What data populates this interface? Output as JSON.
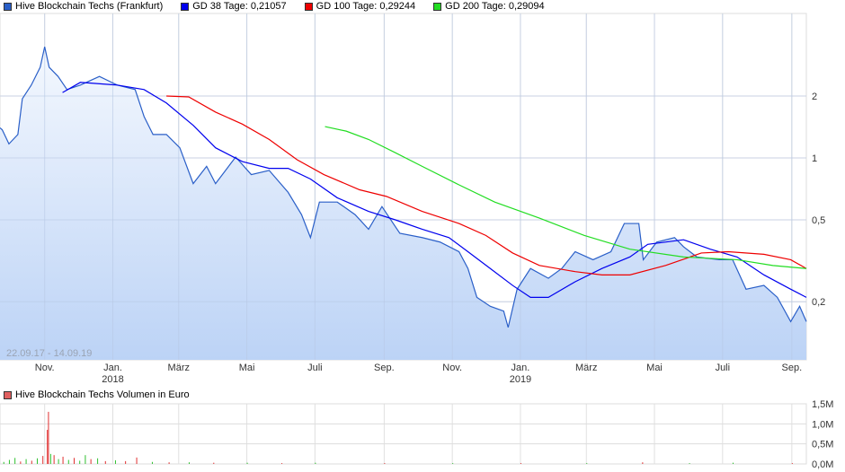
{
  "chart_data": [
    {
      "type": "line",
      "title": "",
      "legend_placement": "top-left",
      "y_scale": "log",
      "ylim": [
        0.13,
        4.2
      ],
      "xlim": [
        "2017-09-22",
        "2019-09-14"
      ],
      "grid": true,
      "date_range_label": "22.09.17 - 14.09.19",
      "y_ticks": [
        {
          "value": 2,
          "label": "2"
        },
        {
          "value": 1,
          "label": "1"
        },
        {
          "value": 0.5,
          "label": "0,5"
        },
        {
          "value": 0.2,
          "label": "0,2"
        }
      ],
      "x_ticks": [
        {
          "date": "2017-11-01",
          "label": "Nov.",
          "year": ""
        },
        {
          "date": "2018-01-01",
          "label": "Jan.",
          "year": "2018"
        },
        {
          "date": "2018-03-01",
          "label": "März",
          "year": ""
        },
        {
          "date": "2018-05-01",
          "label": "Mai",
          "year": ""
        },
        {
          "date": "2018-07-01",
          "label": "Juli",
          "year": ""
        },
        {
          "date": "2018-09-01",
          "label": "Sep.",
          "year": ""
        },
        {
          "date": "2018-11-01",
          "label": "Nov.",
          "year": ""
        },
        {
          "date": "2019-01-01",
          "label": "Jan.",
          "year": "2019"
        },
        {
          "date": "2019-03-01",
          "label": "März",
          "year": ""
        },
        {
          "date": "2019-05-01",
          "label": "Mai",
          "year": ""
        },
        {
          "date": "2019-07-01",
          "label": "Juli",
          "year": ""
        },
        {
          "date": "2019-09-01",
          "label": "Sep.",
          "year": ""
        }
      ],
      "series": [
        {
          "name": "Hive Blockchain Techs (Frankfurt)",
          "color": "#2a5fc8",
          "legend_label": "Hive Blockchain Techs (Frankfurt)",
          "fill": true,
          "points": [
            [
              "2017-09-22",
              1.4
            ],
            [
              "2017-09-24",
              1.37
            ],
            [
              "2017-09-30",
              1.17
            ],
            [
              "2017-10-08",
              1.3
            ],
            [
              "2017-10-12",
              1.94
            ],
            [
              "2017-10-20",
              2.26
            ],
            [
              "2017-10-28",
              2.76
            ],
            [
              "2017-11-01",
              3.47
            ],
            [
              "2017-11-05",
              2.76
            ],
            [
              "2017-11-13",
              2.49
            ],
            [
              "2017-11-21",
              2.15
            ],
            [
              "2017-12-03",
              2.26
            ],
            [
              "2017-12-20",
              2.49
            ],
            [
              "2018-01-05",
              2.26
            ],
            [
              "2018-01-21",
              2.15
            ],
            [
              "2018-01-29",
              1.59
            ],
            [
              "2018-02-06",
              1.3
            ],
            [
              "2018-02-18",
              1.3
            ],
            [
              "2018-03-02",
              1.12
            ],
            [
              "2018-03-14",
              0.75
            ],
            [
              "2018-03-26",
              0.91
            ],
            [
              "2018-04-03",
              0.75
            ],
            [
              "2018-04-21",
              1.01
            ],
            [
              "2018-05-05",
              0.83
            ],
            [
              "2018-05-21",
              0.87
            ],
            [
              "2018-06-07",
              0.68
            ],
            [
              "2018-06-19",
              0.53
            ],
            [
              "2018-06-27",
              0.41
            ],
            [
              "2018-07-05",
              0.61
            ],
            [
              "2018-07-21",
              0.61
            ],
            [
              "2018-08-06",
              0.53
            ],
            [
              "2018-08-18",
              0.45
            ],
            [
              "2018-08-30",
              0.58
            ],
            [
              "2018-09-15",
              0.43
            ],
            [
              "2018-10-05",
              0.41
            ],
            [
              "2018-10-21",
              0.39
            ],
            [
              "2018-11-07",
              0.35
            ],
            [
              "2018-11-15",
              0.29
            ],
            [
              "2018-11-23",
              0.21
            ],
            [
              "2018-12-05",
              0.19
            ],
            [
              "2018-12-17",
              0.18
            ],
            [
              "2018-12-21",
              0.15
            ],
            [
              "2018-12-29",
              0.23
            ],
            [
              "2019-01-10",
              0.29
            ],
            [
              "2019-01-26",
              0.26
            ],
            [
              "2019-02-07",
              0.29
            ],
            [
              "2019-02-19",
              0.35
            ],
            [
              "2019-03-07",
              0.32
            ],
            [
              "2019-03-23",
              0.35
            ],
            [
              "2019-04-04",
              0.48
            ],
            [
              "2019-04-17",
              0.48
            ],
            [
              "2019-04-21",
              0.32
            ],
            [
              "2019-05-03",
              0.39
            ],
            [
              "2019-05-19",
              0.41
            ],
            [
              "2019-05-27",
              0.37
            ],
            [
              "2019-06-08",
              0.33
            ],
            [
              "2019-06-28",
              0.32
            ],
            [
              "2019-07-10",
              0.32
            ],
            [
              "2019-07-22",
              0.23
            ],
            [
              "2019-08-07",
              0.24
            ],
            [
              "2019-08-19",
              0.21
            ],
            [
              "2019-08-31",
              0.16
            ],
            [
              "2019-09-08",
              0.19
            ],
            [
              "2019-09-14",
              0.16
            ]
          ]
        },
        {
          "name": "GD 38 Tage",
          "color": "#0000ee",
          "legend_label": "GD 38 Tage: 0,21057",
          "points": [
            [
              "2017-11-17",
              2.08
            ],
            [
              "2017-12-03",
              2.33
            ],
            [
              "2018-01-05",
              2.26
            ],
            [
              "2018-01-29",
              2.15
            ],
            [
              "2018-02-18",
              1.85
            ],
            [
              "2018-03-14",
              1.44
            ],
            [
              "2018-04-03",
              1.12
            ],
            [
              "2018-04-27",
              0.96
            ],
            [
              "2018-05-21",
              0.89
            ],
            [
              "2018-06-07",
              0.89
            ],
            [
              "2018-06-27",
              0.79
            ],
            [
              "2018-07-21",
              0.64
            ],
            [
              "2018-08-18",
              0.55
            ],
            [
              "2018-09-11",
              0.5
            ],
            [
              "2018-10-05",
              0.45
            ],
            [
              "2018-10-29",
              0.41
            ],
            [
              "2018-11-15",
              0.35
            ],
            [
              "2018-12-05",
              0.29
            ],
            [
              "2018-12-25",
              0.24
            ],
            [
              "2019-01-10",
              0.21
            ],
            [
              "2019-01-26",
              0.21
            ],
            [
              "2019-02-19",
              0.25
            ],
            [
              "2019-03-15",
              0.29
            ],
            [
              "2019-04-09",
              0.33
            ],
            [
              "2019-04-25",
              0.38
            ],
            [
              "2019-05-27",
              0.4
            ],
            [
              "2019-06-20",
              0.36
            ],
            [
              "2019-07-14",
              0.33
            ],
            [
              "2019-08-07",
              0.27
            ],
            [
              "2019-08-31",
              0.23
            ],
            [
              "2019-09-14",
              0.21
            ]
          ]
        },
        {
          "name": "GD 100 Tage",
          "color": "#ee0000",
          "legend_label": "GD 100 Tage: 0,29244",
          "points": [
            [
              "2018-02-18",
              2.0
            ],
            [
              "2018-03-10",
              1.98
            ],
            [
              "2018-04-03",
              1.67
            ],
            [
              "2018-04-27",
              1.46
            ],
            [
              "2018-05-21",
              1.23
            ],
            [
              "2018-06-15",
              0.98
            ],
            [
              "2018-07-09",
              0.83
            ],
            [
              "2018-08-10",
              0.7
            ],
            [
              "2018-09-03",
              0.65
            ],
            [
              "2018-10-05",
              0.55
            ],
            [
              "2018-11-07",
              0.48
            ],
            [
              "2018-12-01",
              0.42
            ],
            [
              "2018-12-25",
              0.345
            ],
            [
              "2019-01-18",
              0.3
            ],
            [
              "2019-02-19",
              0.28
            ],
            [
              "2019-03-15",
              0.27
            ],
            [
              "2019-04-09",
              0.27
            ],
            [
              "2019-05-11",
              0.3
            ],
            [
              "2019-06-12",
              0.345
            ],
            [
              "2019-07-06",
              0.35
            ],
            [
              "2019-08-07",
              0.34
            ],
            [
              "2019-08-31",
              0.32
            ],
            [
              "2019-09-14",
              0.29
            ]
          ]
        },
        {
          "name": "GD 200 Tage",
          "color": "#22dd22",
          "legend_label": "GD 200 Tage: 0,29094",
          "points": [
            [
              "2018-07-10",
              1.42
            ],
            [
              "2018-07-29",
              1.35
            ],
            [
              "2018-08-18",
              1.23
            ],
            [
              "2018-09-11",
              1.06
            ],
            [
              "2018-10-05",
              0.91
            ],
            [
              "2018-11-07",
              0.74
            ],
            [
              "2018-12-09",
              0.61
            ],
            [
              "2019-01-18",
              0.51
            ],
            [
              "2019-02-27",
              0.42
            ],
            [
              "2019-04-09",
              0.36
            ],
            [
              "2019-05-27",
              0.33
            ],
            [
              "2019-07-14",
              0.32
            ],
            [
              "2019-08-15",
              0.3
            ],
            [
              "2019-09-14",
              0.29
            ]
          ]
        }
      ]
    },
    {
      "type": "bar",
      "title": "Hive Blockchain Techs Volumen in Euro",
      "legend_color": "#e06060",
      "ylim": [
        0,
        1.5
      ],
      "y_unit": "M",
      "y_ticks": [
        {
          "value": 1.5,
          "label": "1,5M"
        },
        {
          "value": 1.0,
          "label": "1,0M"
        },
        {
          "value": 0.5,
          "label": "0,5M"
        },
        {
          "value": 0,
          "label": "0,0M"
        }
      ],
      "bars": [
        [
          "2017-09-25",
          0.05,
          "g"
        ],
        [
          "2017-09-30",
          0.1,
          "g"
        ],
        [
          "2017-10-05",
          0.15,
          "g"
        ],
        [
          "2017-10-10",
          0.06,
          "r"
        ],
        [
          "2017-10-15",
          0.12,
          "g"
        ],
        [
          "2017-10-20",
          0.08,
          "r"
        ],
        [
          "2017-10-25",
          0.14,
          "g"
        ],
        [
          "2017-10-30",
          0.2,
          "r"
        ],
        [
          "2017-11-03",
          0.85,
          "r"
        ],
        [
          "2017-11-04",
          1.3,
          "r"
        ],
        [
          "2017-11-06",
          0.25,
          "g"
        ],
        [
          "2017-11-09",
          0.22,
          "r"
        ],
        [
          "2017-11-13",
          0.12,
          "g"
        ],
        [
          "2017-11-17",
          0.18,
          "r"
        ],
        [
          "2017-11-22",
          0.1,
          "g"
        ],
        [
          "2017-11-27",
          0.15,
          "r"
        ],
        [
          "2017-12-02",
          0.08,
          "g"
        ],
        [
          "2017-12-07",
          0.22,
          "g"
        ],
        [
          "2017-12-12",
          0.12,
          "r"
        ],
        [
          "2017-12-18",
          0.14,
          "g"
        ],
        [
          "2017-12-25",
          0.07,
          "r"
        ],
        [
          "2018-01-03",
          0.09,
          "g"
        ],
        [
          "2018-01-12",
          0.07,
          "r"
        ],
        [
          "2018-01-22",
          0.16,
          "r"
        ],
        [
          "2018-02-05",
          0.05,
          "g"
        ],
        [
          "2018-02-20",
          0.04,
          "r"
        ],
        [
          "2018-03-10",
          0.04,
          "g"
        ],
        [
          "2018-04-01",
          0.03,
          "r"
        ],
        [
          "2018-05-01",
          0.03,
          "g"
        ],
        [
          "2018-06-01",
          0.02,
          "r"
        ],
        [
          "2018-07-01",
          0.03,
          "g"
        ],
        [
          "2018-09-01",
          0.02,
          "r"
        ],
        [
          "2018-11-01",
          0.02,
          "g"
        ],
        [
          "2019-01-01",
          0.02,
          "r"
        ],
        [
          "2019-03-01",
          0.02,
          "g"
        ],
        [
          "2019-04-20",
          0.04,
          "r"
        ],
        [
          "2019-06-01",
          0.02,
          "g"
        ],
        [
          "2019-07-10",
          0.03,
          "g"
        ],
        [
          "2019-09-01",
          0.02,
          "r"
        ]
      ]
    }
  ]
}
